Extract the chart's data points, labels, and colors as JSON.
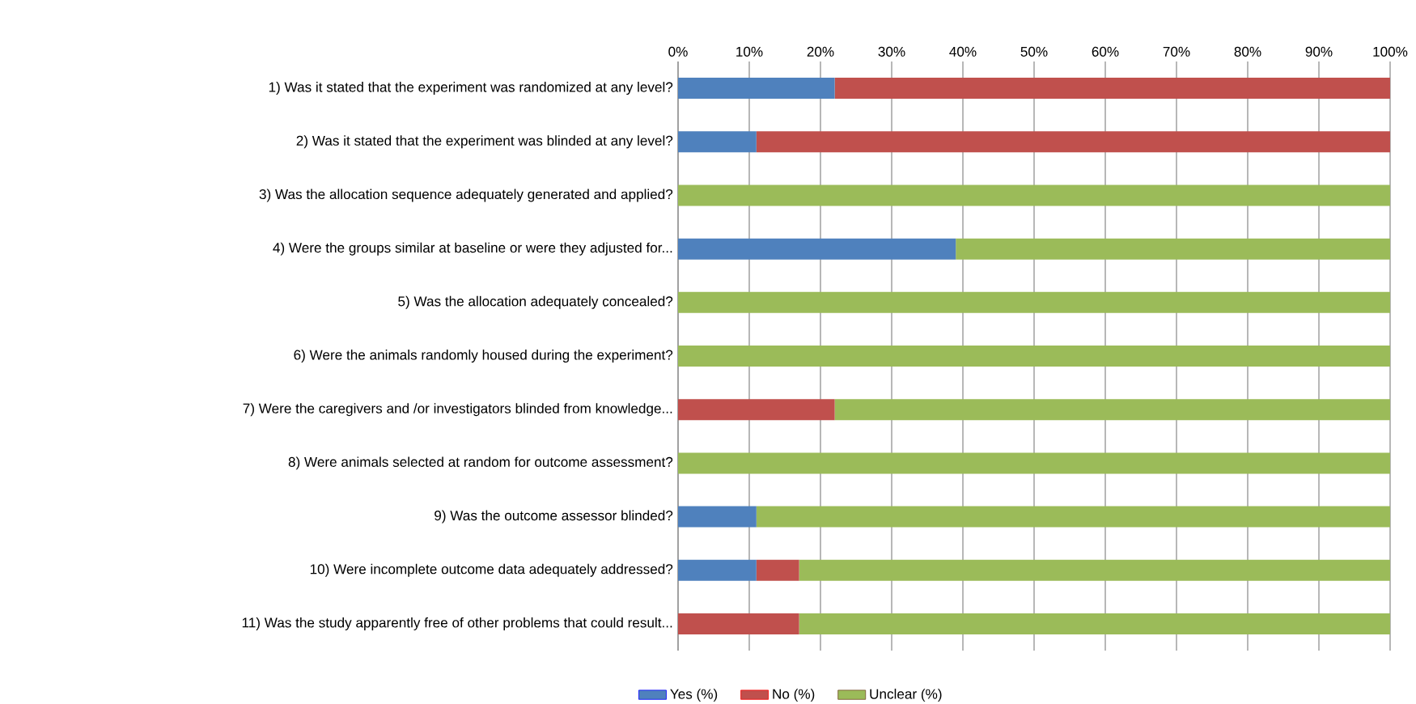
{
  "chart_data": {
    "type": "bar",
    "orientation": "horizontal",
    "stacked": true,
    "categories": [
      "1) Was it stated that the experiment was randomized at any level?",
      "2) Was it stated that the experiment was blinded at any level?",
      "3) Was the allocation sequence adequately generated and applied?",
      "4) Were the groups similar at baseline or were they adjusted for...",
      "5) Was the allocation adequately concealed?",
      "6) Were the animals randomly housed during the experiment?",
      "7) Were the caregivers and /or investigators blinded from knowledge...",
      "8) Were animals selected at random for outcome assessment?",
      "9) Was the outcome assessor blinded?",
      "10) Were incomplete outcome data adequately addressed?",
      "11) Was the study apparently free of other problems that could result..."
    ],
    "series": [
      {
        "name": "Yes (%)",
        "color": "#4f81bd",
        "values": [
          22,
          11,
          0,
          39,
          0,
          0,
          0,
          0,
          11,
          11,
          0
        ]
      },
      {
        "name": "No (%)",
        "color": "#c0504d",
        "values": [
          78,
          89,
          0,
          0,
          0,
          0,
          22,
          0,
          0,
          6,
          17
        ]
      },
      {
        "name": "Unclear (%)",
        "color": "#9bbb59",
        "values": [
          0,
          0,
          100,
          61,
          100,
          100,
          78,
          100,
          89,
          83,
          83
        ]
      }
    ],
    "xlim": [
      0,
      100
    ],
    "xticks": [
      {
        "value": 0,
        "label": "0%"
      },
      {
        "value": 10,
        "label": "10%"
      },
      {
        "value": 20,
        "label": "20%"
      },
      {
        "value": 30,
        "label": "30%"
      },
      {
        "value": 40,
        "label": "40%"
      },
      {
        "value": 50,
        "label": "50%"
      },
      {
        "value": 60,
        "label": "60%"
      },
      {
        "value": 70,
        "label": "70%"
      },
      {
        "value": 80,
        "label": "80%"
      },
      {
        "value": 90,
        "label": "90%"
      },
      {
        "value": 100,
        "label": "100%"
      }
    ],
    "grid": "x",
    "legend": "bottom"
  }
}
